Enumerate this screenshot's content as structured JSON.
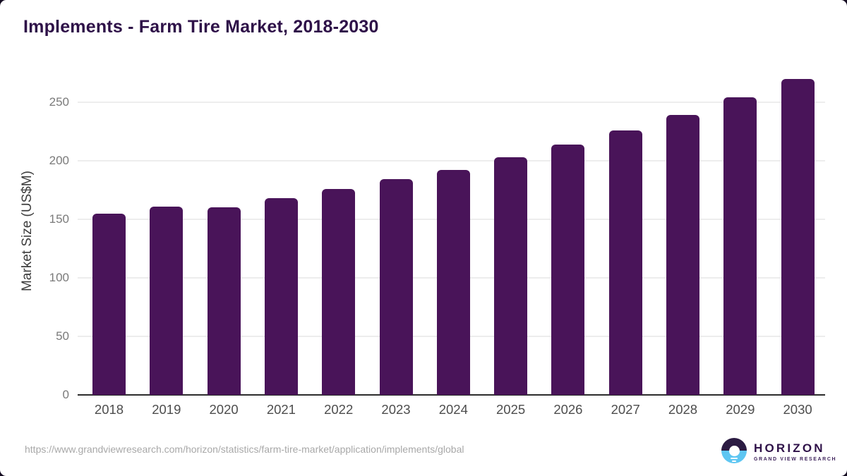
{
  "header": {
    "title": "Implements - Farm Tire Market, 2018-2030"
  },
  "footer": {
    "source_url": "https://www.grandviewresearch.com/horizon/statistics/farm-tire-market/application/implements/global",
    "logo": {
      "brand": "HORIZON",
      "tagline": "GRAND VIEW RESEARCH"
    }
  },
  "colors": {
    "bar": "#491459",
    "title": "#2e1148",
    "axis_line": "#2c2c2c",
    "gridline": "#ededed",
    "ytick_label": "#7a7a7a",
    "xtick_label": "#4d4d4d",
    "url_text": "#a8a8a8",
    "logo_navy": "#2b1b42",
    "logo_blue": "#5ec6f2",
    "background": "#ffffff"
  },
  "chart_data": {
    "type": "bar",
    "title": "Implements - Farm Tire Market, 2018-2030",
    "categories": [
      "2018",
      "2019",
      "2020",
      "2021",
      "2022",
      "2023",
      "2024",
      "2025",
      "2026",
      "2027",
      "2028",
      "2029",
      "2030"
    ],
    "values": [
      155,
      161,
      160,
      168,
      176,
      184,
      192,
      203,
      214,
      226,
      239,
      254,
      270
    ],
    "xlabel": "",
    "ylabel": "Market Size (US$M)",
    "ylim": [
      0,
      280
    ],
    "yticks": [
      0,
      50,
      100,
      150,
      200,
      250
    ],
    "grid": true,
    "legend": false,
    "bar_color": "#491459",
    "units": "US$M"
  }
}
